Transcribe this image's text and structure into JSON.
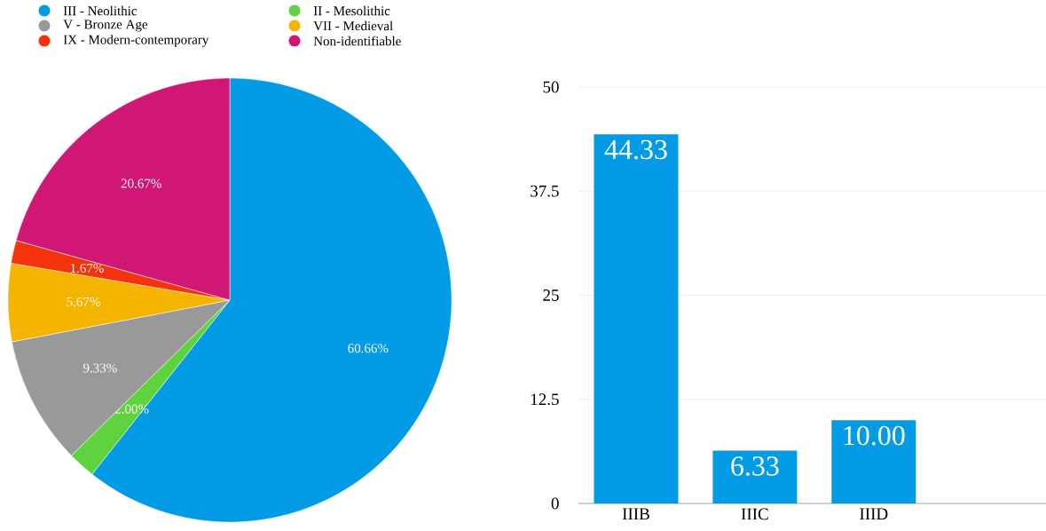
{
  "chart_data": [
    {
      "type": "pie",
      "categories": [
        "III - Neolithic",
        "II - Mesolithic",
        "V - Bronze Age",
        "VII - Medieval",
        "IX - Modern-contemporary",
        "Non-identifiable"
      ],
      "values": [
        60.66,
        2.0,
        9.33,
        5.67,
        1.67,
        20.67
      ],
      "colors": [
        "#039be5",
        "#5fd33e",
        "#999999",
        "#f4b400",
        "#f4330c",
        "#d01775"
      ],
      "value_labels": [
        "60.66%",
        "2.00%",
        "9.33%",
        "5.67%",
        "1.67%",
        "20.67%"
      ],
      "legend": "top"
    },
    {
      "type": "bar",
      "categories": [
        "IIIB",
        "IIIC",
        "IIID"
      ],
      "values": [
        44.33,
        6.33,
        10.0
      ],
      "color": "#039be5",
      "value_labels": [
        "44.33",
        "6.33",
        "10.00"
      ],
      "ylim": [
        0,
        50
      ],
      "yticks": [
        0,
        12.5,
        25,
        37.5,
        50
      ],
      "grid": "y"
    }
  ]
}
